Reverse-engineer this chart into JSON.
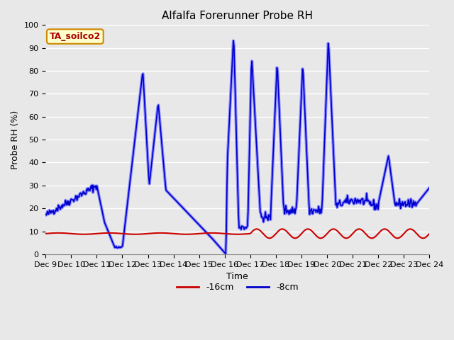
{
  "title": "Alfalfa Forerunner Probe RH",
  "xlabel": "Time",
  "ylabel": "Probe RH (%)",
  "ylim": [
    0,
    100
  ],
  "xlim": [
    0,
    15
  ],
  "fig_bg_color": "#e8e8e8",
  "plot_bg_color": "#e8e8e8",
  "grid_color": "white",
  "annotation_text": "TA_soilco2",
  "annotation_bg": "#ffffcc",
  "annotation_border": "#cc8800",
  "annotation_text_color": "#aa0000",
  "line_red_color": "#cc0000",
  "line_blue_color": "#0000cc",
  "line_blue_light_color": "#8888ff",
  "xtick_labels": [
    "Dec 9",
    "Dec 10",
    "Dec 11",
    "Dec 12",
    "Dec 13",
    "Dec 14",
    "Dec 15",
    "Dec 16",
    "Dec 17",
    "Dec 18",
    "Dec 19",
    "Dec 20",
    "Dec 21",
    "Dec 22",
    "Dec 23",
    "Dec 24"
  ],
  "legend_labels": [
    "-16cm",
    "-8cm"
  ],
  "ytick_labels": [
    "0",
    "10",
    "20",
    "30",
    "40",
    "50",
    "60",
    "70",
    "80",
    "90",
    "100"
  ],
  "title_fontsize": 11,
  "axis_fontsize": 9,
  "tick_fontsize": 8
}
